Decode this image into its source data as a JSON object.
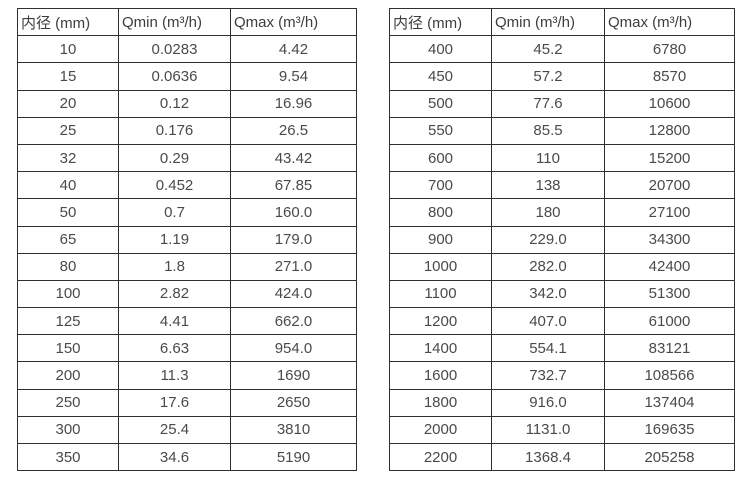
{
  "colors": {
    "border": "#2f2f2f",
    "text": "#4a4a4a",
    "background": "#ffffff"
  },
  "tables": [
    {
      "name": "flow-rate-table-small-diameters",
      "headers": [
        "内径 (mm)",
        "Qmin (m³/h)",
        "Qmax (m³/h)"
      ],
      "rows": [
        [
          "10",
          "0.0283",
          "4.42"
        ],
        [
          "15",
          "0.0636",
          "9.54"
        ],
        [
          "20",
          "0.12",
          "16.96"
        ],
        [
          "25",
          "0.176",
          "26.5"
        ],
        [
          "32",
          "0.29",
          "43.42"
        ],
        [
          "40",
          "0.452",
          "67.85"
        ],
        [
          "50",
          "0.7",
          "160.0"
        ],
        [
          "65",
          "1.19",
          "179.0"
        ],
        [
          "80",
          "1.8",
          "271.0"
        ],
        [
          "100",
          "2.82",
          "424.0"
        ],
        [
          "125",
          "4.41",
          "662.0"
        ],
        [
          "150",
          "6.63",
          "954.0"
        ],
        [
          "200",
          "11.3",
          "1690"
        ],
        [
          "250",
          "17.6",
          "2650"
        ],
        [
          "300",
          "25.4",
          "3810"
        ],
        [
          "350",
          "34.6",
          "5190"
        ]
      ]
    },
    {
      "name": "flow-rate-table-large-diameters",
      "headers": [
        "内径 (mm)",
        "Qmin (m³/h)",
        "Qmax (m³/h)"
      ],
      "rows": [
        [
          "400",
          "45.2",
          "6780"
        ],
        [
          "450",
          "57.2",
          "8570"
        ],
        [
          "500",
          "77.6",
          "10600"
        ],
        [
          "550",
          "85.5",
          "12800"
        ],
        [
          "600",
          "110",
          "15200"
        ],
        [
          "700",
          "138",
          "20700"
        ],
        [
          "800",
          "180",
          "27100"
        ],
        [
          "900",
          "229.0",
          "34300"
        ],
        [
          "1000",
          "282.0",
          "42400"
        ],
        [
          "1100",
          "342.0",
          "51300"
        ],
        [
          "1200",
          "407.0",
          "61000"
        ],
        [
          "1400",
          "554.1",
          "83121"
        ],
        [
          "1600",
          "732.7",
          "108566"
        ],
        [
          "1800",
          "916.0",
          "137404"
        ],
        [
          "2000",
          "1131.0",
          "169635"
        ],
        [
          "2200",
          "1368.4",
          "205258"
        ]
      ]
    }
  ]
}
